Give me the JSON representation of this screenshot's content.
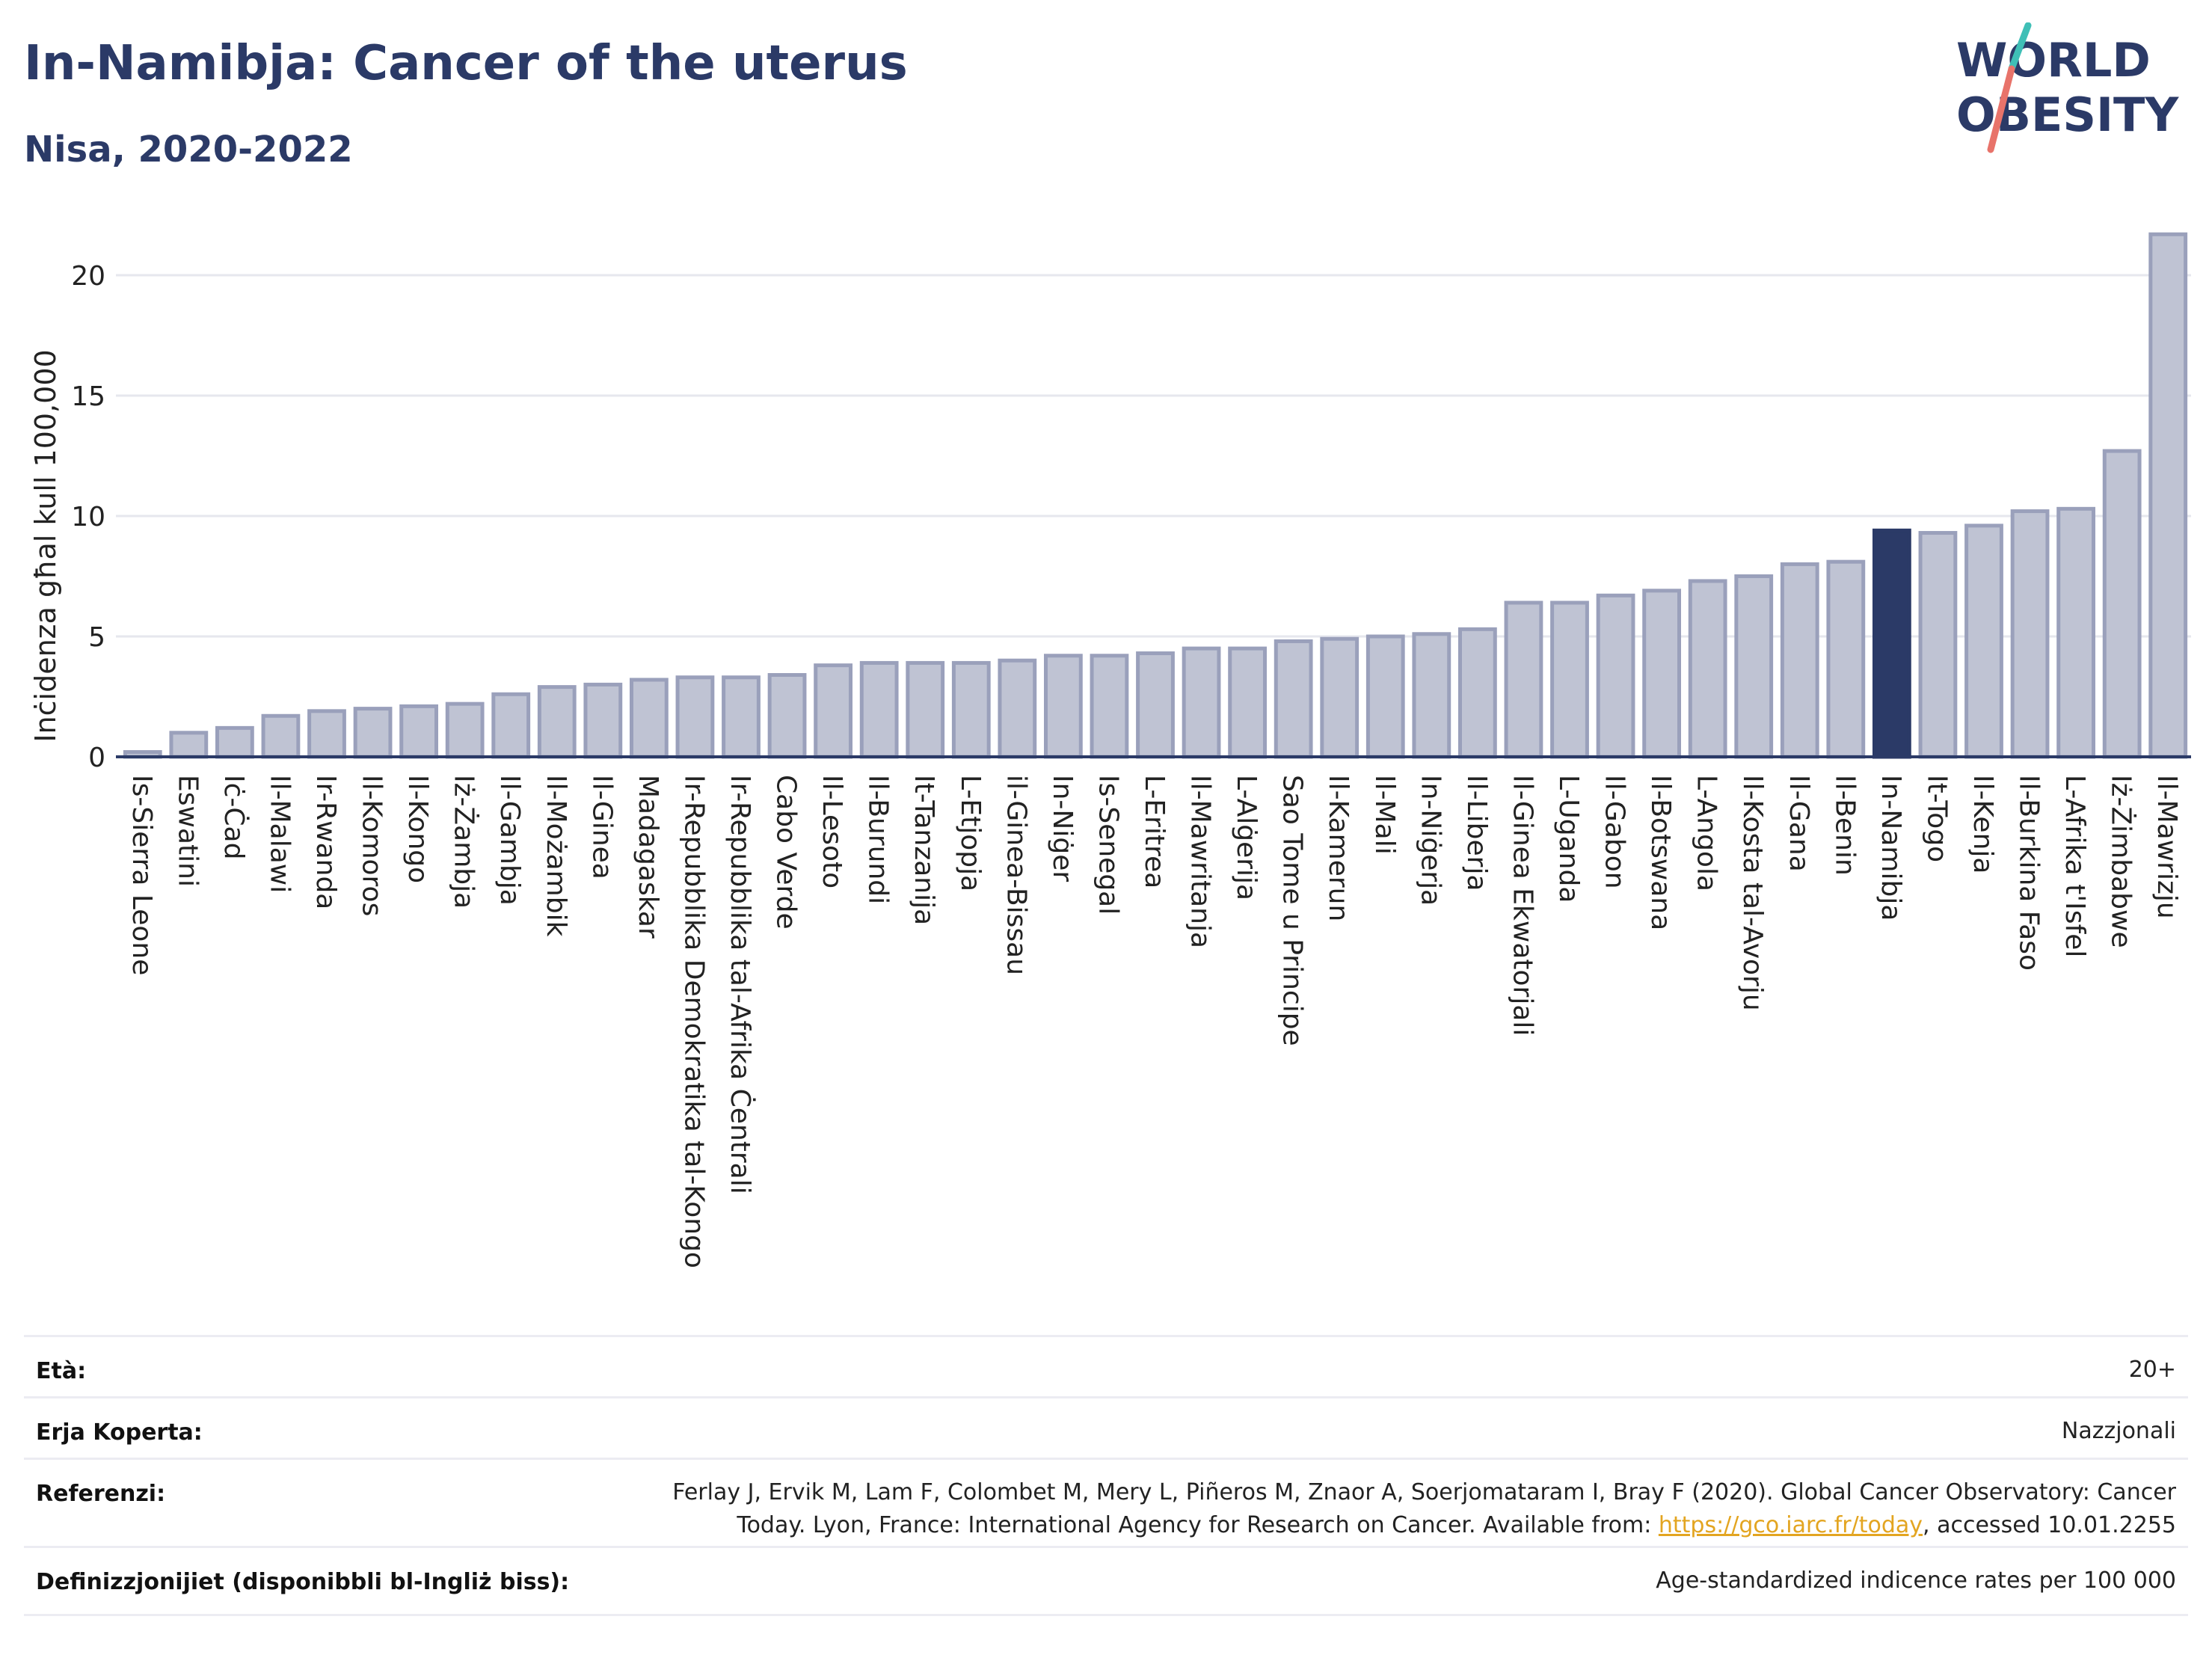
{
  "header": {
    "title": "In-Namibja: Cancer of the uterus",
    "subtitle": "Nisa, 2020-2022"
  },
  "logo": {
    "line1": "WORLD",
    "line2": "OBESITY",
    "colors": {
      "text": "#2b3a67",
      "slash_teal": "#3fbfb6",
      "slash_red": "#e8736a"
    }
  },
  "colors": {
    "bar_default": "#bfc3d3",
    "bar_border": "#9aa0bb",
    "bar_highlight": "#2b3a67",
    "gridline": "#e6e7ee",
    "axis": "#2b3a67"
  },
  "chart_data": {
    "type": "bar",
    "ylabel": "Inċidenza għal kull 100,000",
    "ylim": [
      0,
      22
    ],
    "yticks": [
      0,
      5,
      10,
      15,
      20
    ],
    "grid": true,
    "highlight": "In-Namibja",
    "categories": [
      "Is-Sierra Leone",
      "Eswatini",
      "Iċ-Ċad",
      "Il-Malawi",
      "Ir-Rwanda",
      "Il-Komoros",
      "Il-Kongo",
      "Iż-Żambja",
      "Il-Gambja",
      "Il-Możambik",
      "Il-Ginea",
      "Madagaskar",
      "Ir-Repubblika Demokratika tal-Kongo",
      "Ir-Repubblika tal-Afrika Ċentrali",
      "Cabo Verde",
      "Il-Lesoto",
      "Il-Burundi",
      "It-Tanzanija",
      "L-Etjopja",
      "il-Ginea-Bissau",
      "In-Niġer",
      "Is-Senegal",
      "L-Eritrea",
      "Il-Mawritanja",
      "L-Alġerija",
      "Sao Tome u Principe",
      "Il-Kamerun",
      "Il-Mali",
      "In-Niġerja",
      "Il-Liberja",
      "Il-Ginea Ekwatorjali",
      "L-Uganda",
      "Il-Gabon",
      "Il-Botswana",
      "L-Angola",
      "Il-Kosta tal-Avorju",
      "Il-Gana",
      "Il-Benin",
      "In-Namibja",
      "It-Togo",
      "Il-Kenja",
      "Il-Burkina Faso",
      "L-Afrika t'Isfel",
      "Iż-Żimbabwe",
      "Il-Mawrizju"
    ],
    "values": [
      0.2,
      1.0,
      1.2,
      1.7,
      1.9,
      2.0,
      2.1,
      2.2,
      2.6,
      2.9,
      3.0,
      3.2,
      3.3,
      3.3,
      3.4,
      3.8,
      3.9,
      3.9,
      3.9,
      4.0,
      4.2,
      4.2,
      4.3,
      4.5,
      4.5,
      4.8,
      4.9,
      5.0,
      5.1,
      5.3,
      6.4,
      6.4,
      6.7,
      6.9,
      7.3,
      7.5,
      8.0,
      8.1,
      9.4,
      9.3,
      9.6,
      10.2,
      10.3,
      12.7,
      21.7
    ]
  },
  "meta": {
    "age_label": "Età:",
    "age_value": "20+",
    "coverage_label": "Erja Koperta:",
    "coverage_value": "Nazzjonali",
    "references_label": "Referenzi:",
    "references_text_1": "Ferlay J, Ervik M, Lam F, Colombet M, Mery L, Piñeros M, Znaor A, Soerjomataram I, Bray F (2020). Global Cancer Observatory: Cancer",
    "references_text_2": "Today. Lyon, France: International Agency for Research on Cancer. Available from: ",
    "references_link": "https://gco.iarc.fr/today",
    "references_text_3": ", accessed 10.01.2255",
    "definitions_label": "Definizzjonijiet (disponibbli bl-Ingliż biss):",
    "definitions_value": "Age-standardized indicence rates per 100 000"
  }
}
